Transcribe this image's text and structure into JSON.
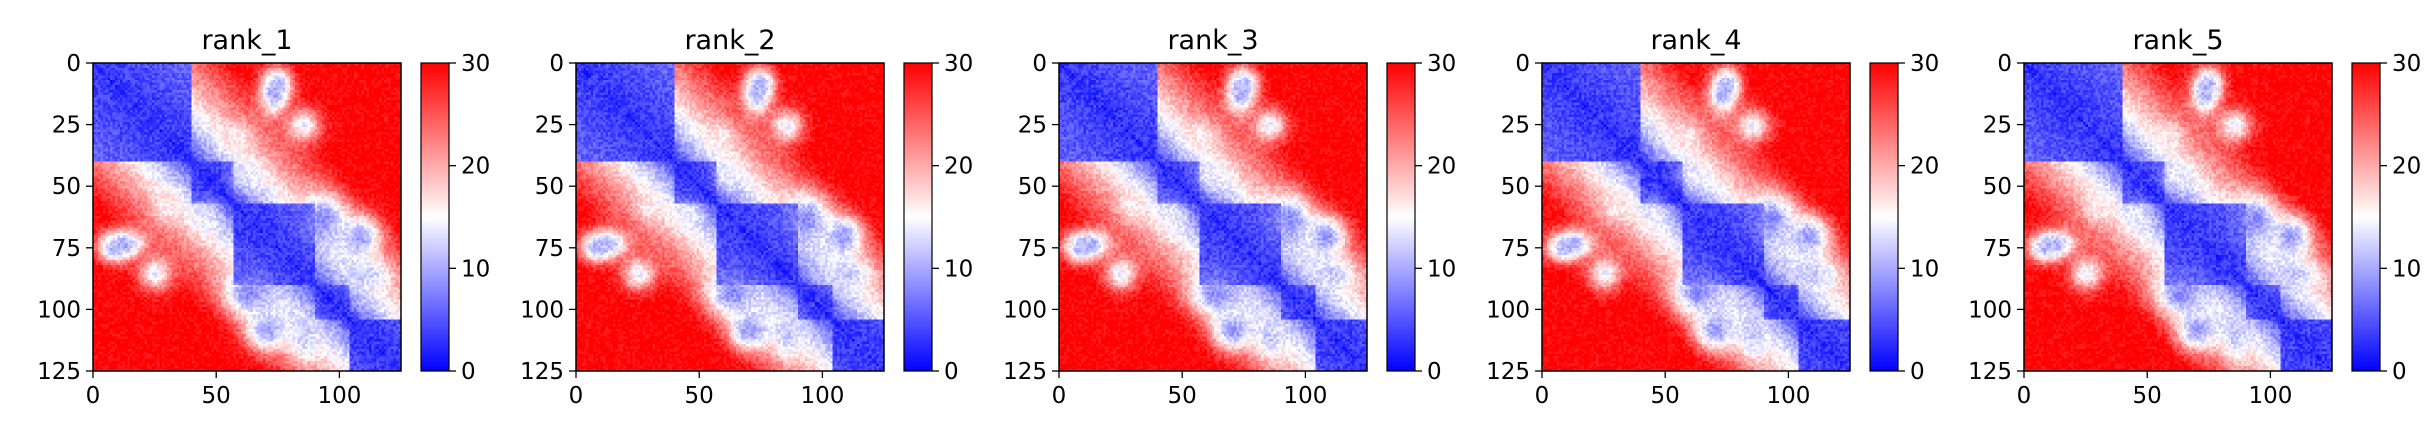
{
  "chart_data": [
    {
      "type": "heatmap",
      "title": "rank_1",
      "xlim": [
        0,
        125
      ],
      "ylim": [
        125,
        0
      ],
      "x_ticks": [
        0,
        50,
        100
      ],
      "y_ticks": [
        0,
        25,
        50,
        75,
        100,
        125
      ],
      "colorbar": {
        "range": [
          0,
          30
        ],
        "ticks": [
          0,
          10,
          20,
          30
        ],
        "colormap": "bwr",
        "low_color": "#0000ff",
        "mid_color": "#ffffff",
        "high_color": "#ff0000"
      },
      "matrix_size": 125
    },
    {
      "type": "heatmap",
      "title": "rank_2",
      "xlim": [
        0,
        125
      ],
      "ylim": [
        125,
        0
      ],
      "x_ticks": [
        0,
        50,
        100
      ],
      "y_ticks": [
        0,
        25,
        50,
        75,
        100,
        125
      ],
      "colorbar": {
        "range": [
          0,
          30
        ],
        "ticks": [
          0,
          10,
          20,
          30
        ],
        "colormap": "bwr",
        "low_color": "#0000ff",
        "mid_color": "#ffffff",
        "high_color": "#ff0000"
      },
      "matrix_size": 125
    },
    {
      "type": "heatmap",
      "title": "rank_3",
      "xlim": [
        0,
        125
      ],
      "ylim": [
        125,
        0
      ],
      "x_ticks": [
        0,
        50,
        100
      ],
      "y_ticks": [
        0,
        25,
        50,
        75,
        100,
        125
      ],
      "colorbar": {
        "range": [
          0,
          30
        ],
        "ticks": [
          0,
          10,
          20,
          30
        ],
        "colormap": "bwr",
        "low_color": "#0000ff",
        "mid_color": "#ffffff",
        "high_color": "#ff0000"
      },
      "matrix_size": 125
    },
    {
      "type": "heatmap",
      "title": "rank_4",
      "xlim": [
        0,
        125
      ],
      "ylim": [
        125,
        0
      ],
      "x_ticks": [
        0,
        50,
        100
      ],
      "y_ticks": [
        0,
        25,
        50,
        75,
        100,
        125
      ],
      "colorbar": {
        "range": [
          0,
          30
        ],
        "ticks": [
          0,
          10,
          20,
          30
        ],
        "colormap": "bwr",
        "low_color": "#0000ff",
        "mid_color": "#ffffff",
        "high_color": "#ff0000"
      },
      "matrix_size": 125
    },
    {
      "type": "heatmap",
      "title": "rank_5",
      "xlim": [
        0,
        125
      ],
      "ylim": [
        125,
        0
      ],
      "x_ticks": [
        0,
        50,
        100
      ],
      "y_ticks": [
        0,
        25,
        50,
        75,
        100,
        125
      ],
      "colorbar": {
        "range": [
          0,
          30
        ],
        "ticks": [
          0,
          10,
          20,
          30
        ],
        "colormap": "bwr",
        "low_color": "#0000ff",
        "mid_color": "#ffffff",
        "high_color": "#ff0000"
      },
      "matrix_size": 125
    }
  ]
}
